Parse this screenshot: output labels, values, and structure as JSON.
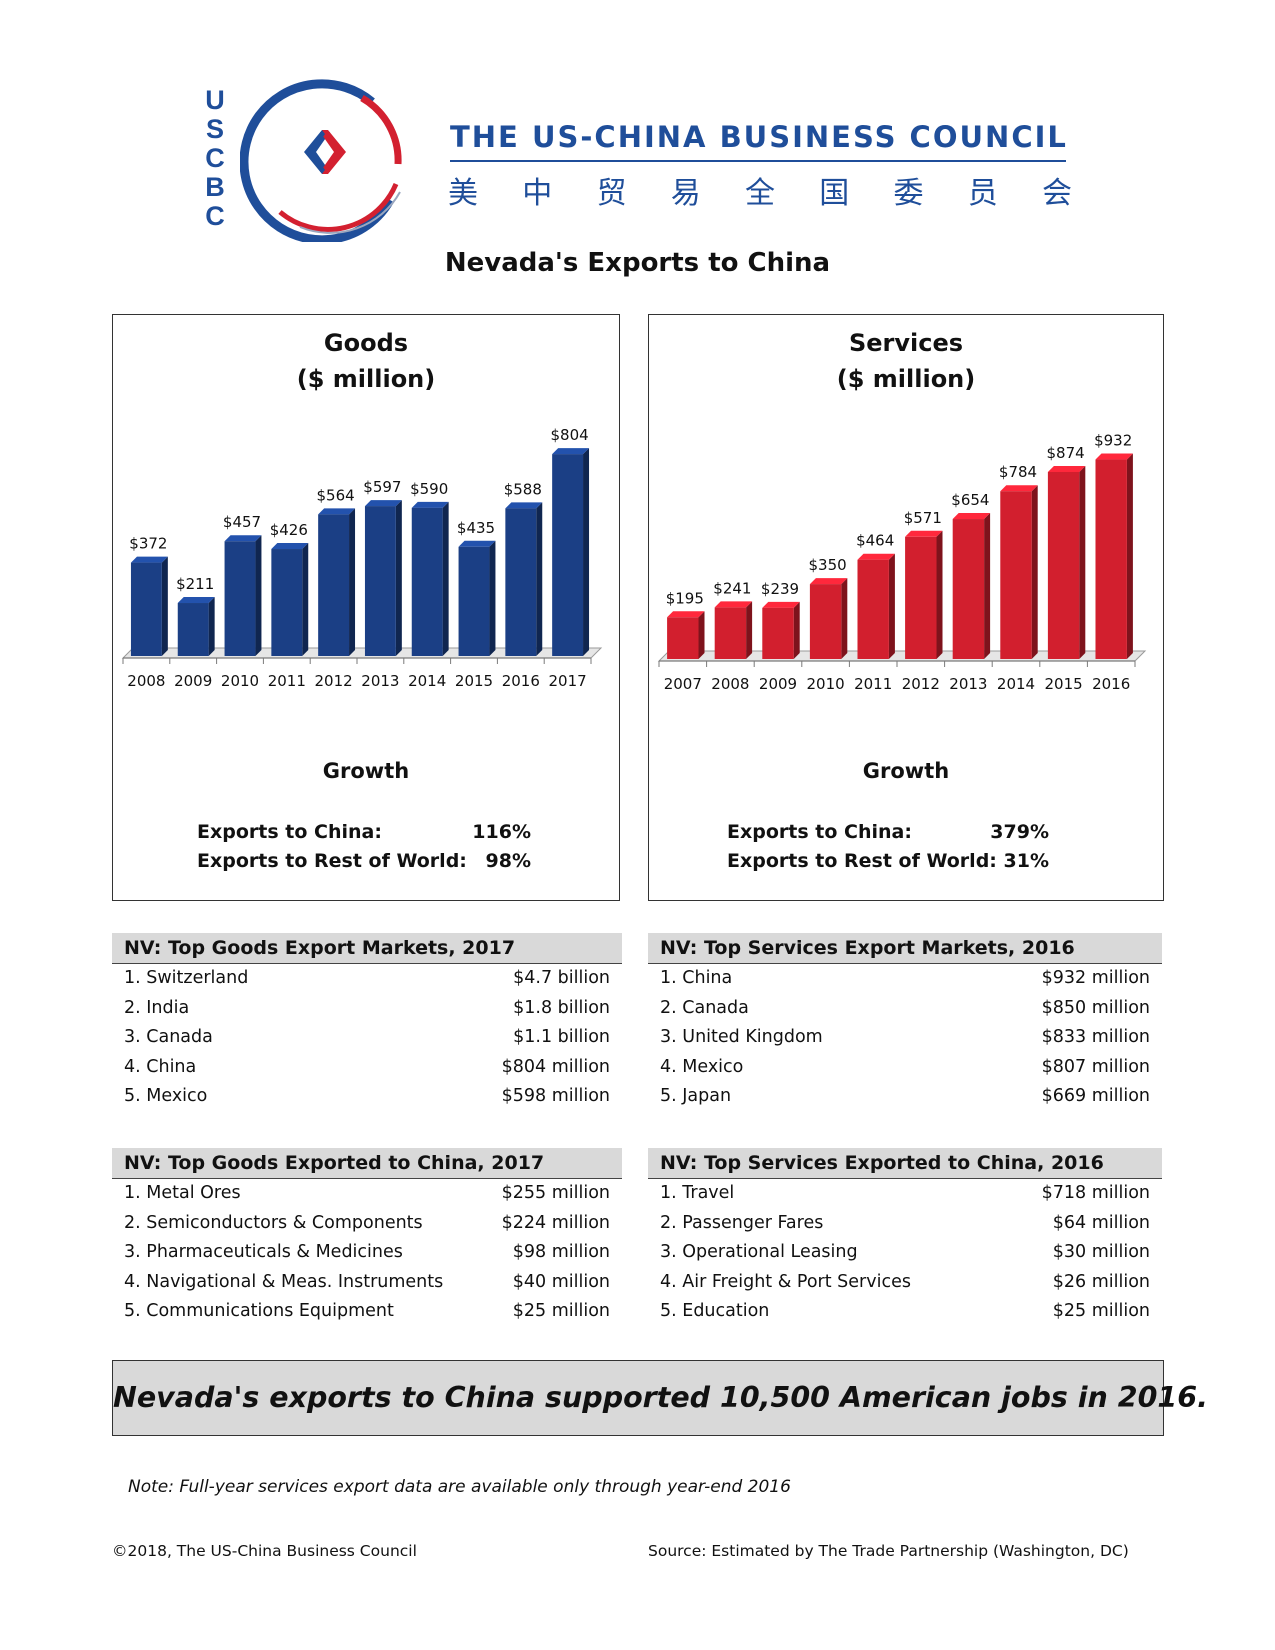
{
  "logo": {
    "letters": [
      "U",
      "S",
      "C",
      "B",
      "C"
    ],
    "name": "THE US-CHINA BUSINESS COUNCIL",
    "chinese": [
      "美",
      "中",
      "贸",
      "易",
      "全",
      "国",
      "委",
      "员",
      "会"
    ],
    "colors": {
      "blue": "#1f4e9a",
      "red": "#d32030"
    }
  },
  "page_title": "Nevada's Exports to China",
  "goods_panel": {
    "title_line1": "Goods",
    "title_line2": "($ million)",
    "growth_heading": "Growth",
    "growth_rows": [
      {
        "label": "Exports to China:",
        "value": "116%"
      },
      {
        "label": "Exports to Rest of World:",
        "value": "98%"
      }
    ]
  },
  "services_panel": {
    "title_line1": "Services",
    "title_line2": "($ million)",
    "growth_heading": "Growth",
    "growth_rows": [
      {
        "label": "Exports to China:",
        "value": "379%"
      },
      {
        "label": "Exports to Rest of World:",
        "value": "31%"
      }
    ]
  },
  "chart_data": [
    {
      "type": "bar",
      "title": "Goods ($ million)",
      "categories": [
        "2008",
        "2009",
        "2010",
        "2011",
        "2012",
        "2013",
        "2014",
        "2015",
        "2016",
        "2017"
      ],
      "values": [
        372,
        211,
        457,
        426,
        564,
        597,
        590,
        435,
        588,
        804
      ],
      "data_labels": [
        "$372",
        "$211",
        "$457",
        "$426",
        "$564",
        "$597",
        "$590",
        "$435",
        "$588",
        "$804"
      ],
      "ylim": [
        0,
        900
      ],
      "grid": false,
      "color": "#1b3f85"
    },
    {
      "type": "bar",
      "title": "Services ($ million)",
      "categories": [
        "2007",
        "2008",
        "2009",
        "2010",
        "2011",
        "2012",
        "2013",
        "2014",
        "2015",
        "2016"
      ],
      "values": [
        195,
        241,
        239,
        350,
        464,
        571,
        654,
        784,
        874,
        932
      ],
      "data_labels": [
        "$195",
        "$241",
        "$239",
        "$350",
        "$464",
        "$571",
        "$654",
        "$784",
        "$874",
        "$932"
      ],
      "ylim": [
        0,
        1000
      ],
      "grid": false,
      "color": "#d21f2e"
    }
  ],
  "tables": {
    "goods_markets": {
      "heading": "NV: Top Goods Export Markets, 2017",
      "rows": [
        {
          "label": "1. Switzerland",
          "value": "$4.7 billion"
        },
        {
          "label": "2. India",
          "value": "$1.8 billion"
        },
        {
          "label": "3. Canada",
          "value": "$1.1 billion"
        },
        {
          "label": "4. China",
          "value": "$804 million"
        },
        {
          "label": "5. Mexico",
          "value": "$598 million"
        }
      ]
    },
    "services_markets": {
      "heading": "NV: Top Services Export Markets, 2016",
      "rows": [
        {
          "label": "1. China",
          "value": "$932 million"
        },
        {
          "label": "2. Canada",
          "value": "$850 million"
        },
        {
          "label": "3. United Kingdom",
          "value": "$833 million"
        },
        {
          "label": "4. Mexico",
          "value": "$807 million"
        },
        {
          "label": "5. Japan",
          "value": "$669 million"
        }
      ]
    },
    "goods_exported": {
      "heading": "NV: Top Goods Exported to China, 2017",
      "rows": [
        {
          "label": "1. Metal Ores",
          "value": "$255 million"
        },
        {
          "label": "2. Semiconductors & Components",
          "value": "$224 million"
        },
        {
          "label": "3. Pharmaceuticals & Medicines",
          "value": "$98 million"
        },
        {
          "label": "4. Navigational & Meas. Instruments",
          "value": "$40 million"
        },
        {
          "label": "5. Communications Equipment",
          "value": "$25 million"
        }
      ]
    },
    "services_exported": {
      "heading": "NV: Top Services Exported to China, 2016",
      "rows": [
        {
          "label": "1. Travel",
          "value": "$718 million"
        },
        {
          "label": "2. Passenger Fares",
          "value": "$64 million"
        },
        {
          "label": "3. Operational Leasing",
          "value": "$30 million"
        },
        {
          "label": "4. Air Freight & Port Services",
          "value": "$26 million"
        },
        {
          "label": "5. Education",
          "value": "$25 million"
        }
      ]
    }
  },
  "banner": "Nevada's exports to China supported 10,500 American jobs in 2016.",
  "note": "Note: Full-year services export data are available only through year-end 2016",
  "footer": {
    "copyright": "©2018, The US-China Business Council",
    "source": "Source: Estimated by The Trade Partnership (Washington, DC)"
  }
}
